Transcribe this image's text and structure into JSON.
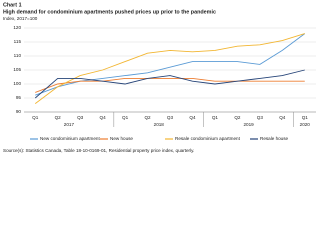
{
  "chart_data": {
    "type": "line",
    "label": "Chart 1",
    "title": "High demand for condominium apartments pushed prices up prior to the pandemic",
    "subtitle": "Index, 2017=100",
    "categories": [
      "Q1",
      "Q2",
      "Q3",
      "Q4",
      "Q1",
      "Q2",
      "Q3",
      "Q4",
      "Q1",
      "Q2",
      "Q3",
      "Q4",
      "Q1"
    ],
    "years": [
      "2017",
      "2018",
      "2019",
      "2020"
    ],
    "series": [
      {
        "name": "New condominium apartment",
        "color": "#5b9bd5",
        "values": [
          96,
          99,
          101,
          102,
          103,
          104,
          106,
          108,
          108,
          108,
          107,
          112,
          118
        ]
      },
      {
        "name": "New house",
        "color": "#ed7d31",
        "values": [
          97,
          100,
          101,
          101,
          102,
          102,
          102,
          102,
          101,
          101,
          101,
          101,
          101
        ]
      },
      {
        "name": "Resale condominium apartment",
        "color": "#f2b632",
        "values": [
          93,
          99,
          103,
          105,
          108,
          111,
          112,
          111.5,
          112,
          113.5,
          114,
          115.5,
          118
        ]
      },
      {
        "name": "Resale house",
        "color": "#264478",
        "values": [
          95,
          102,
          102,
          101,
          100,
          102,
          103,
          101,
          100,
          101,
          102,
          103,
          105
        ]
      }
    ],
    "ylim": [
      90,
      120
    ],
    "yticks": [
      90,
      95,
      100,
      105,
      110,
      115,
      120
    ],
    "grid": true,
    "source": "Source(s): Statistics Canada, Table 18-10-0169-01, Residential property price index, quarterly."
  }
}
